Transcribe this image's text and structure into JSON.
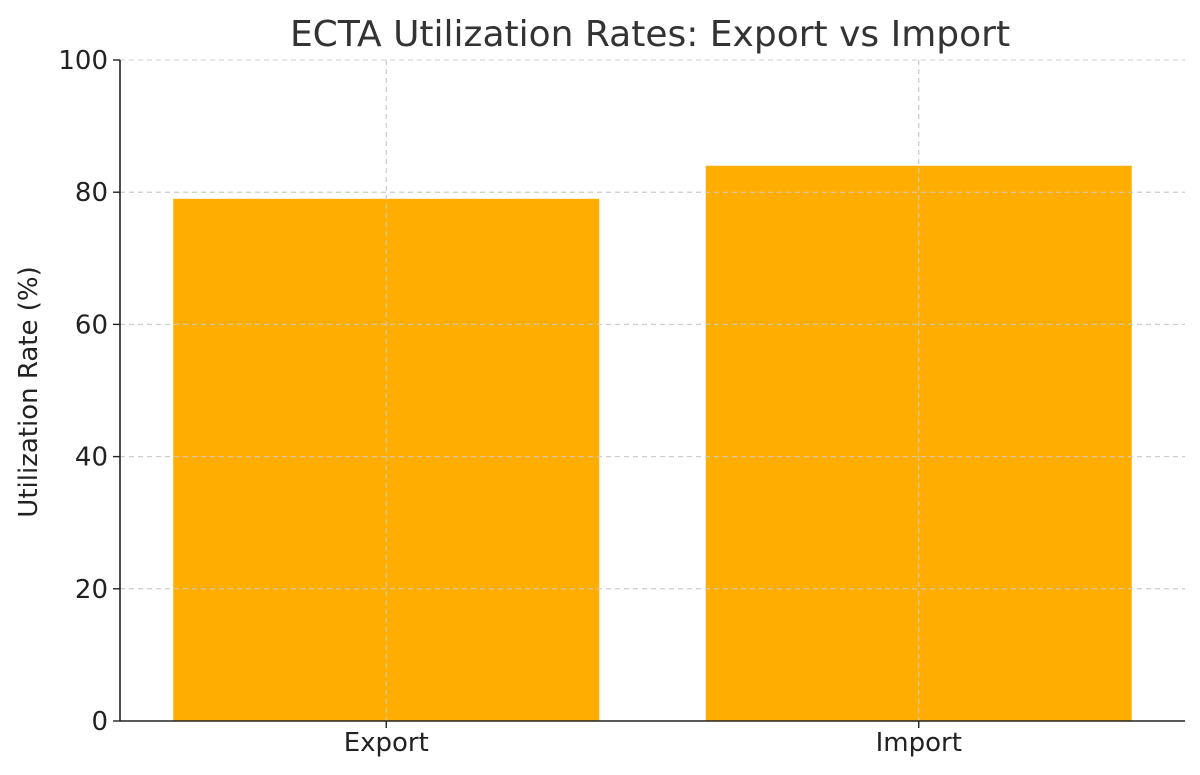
{
  "chart_data": {
    "type": "bar",
    "title": "ECTA Utilization Rates: Export vs Import",
    "xlabel": "",
    "ylabel": "Utilization Rate (%)",
    "categories": [
      "Export",
      "Import"
    ],
    "values": [
      79,
      84
    ],
    "ylim": [
      0,
      100
    ],
    "yticks": [
      0,
      20,
      40,
      60,
      80,
      100
    ],
    "grid": true,
    "bar_color": "#ffae00"
  }
}
